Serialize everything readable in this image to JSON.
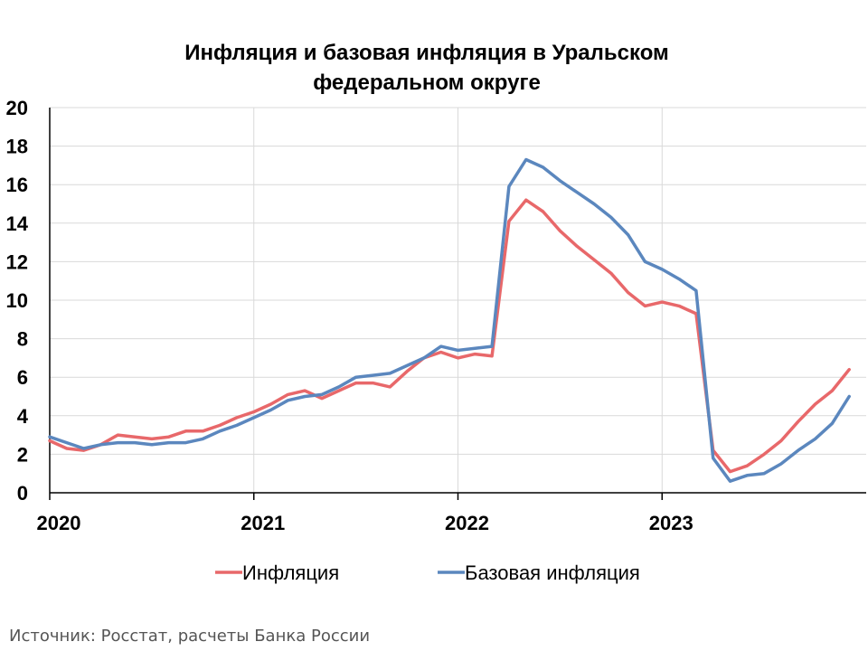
{
  "chart_data": {
    "type": "line",
    "title": "Инфляция и базовая инфляция в Уральском федеральном округе",
    "title_lines": [
      "Инфляция и базовая инфляция в Уральском",
      "федеральном округе"
    ],
    "xlabel": "",
    "ylabel": "",
    "x_tick_labels": [
      "2020",
      "2021",
      "2022",
      "2023"
    ],
    "x_start": "2020-01",
    "x_end": "2023-12",
    "y_ticks": [
      0,
      2,
      4,
      6,
      8,
      10,
      12,
      14,
      16,
      18,
      20
    ],
    "ylim": [
      0,
      20
    ],
    "grid": true,
    "legend_position": "bottom",
    "series": [
      {
        "name": "Инфляция",
        "color": "#E8686A",
        "values": [
          2.7,
          2.3,
          2.2,
          2.5,
          3.0,
          2.9,
          2.8,
          2.9,
          3.2,
          3.2,
          3.5,
          3.9,
          4.2,
          4.6,
          5.1,
          5.3,
          4.9,
          5.3,
          5.7,
          5.7,
          5.5,
          6.3,
          7.0,
          7.3,
          7.0,
          7.2,
          7.1,
          14.1,
          15.2,
          14.6,
          13.6,
          12.8,
          12.1,
          11.4,
          10.4,
          9.7,
          9.9,
          9.7,
          9.3,
          2.2,
          1.1,
          1.4,
          2.0,
          2.7,
          3.7,
          4.6,
          5.3,
          6.4
        ]
      },
      {
        "name": "Базовая инфляция",
        "color": "#5B87BE",
        "values": [
          2.9,
          2.6,
          2.3,
          2.5,
          2.6,
          2.6,
          2.5,
          2.6,
          2.6,
          2.8,
          3.2,
          3.5,
          3.9,
          4.3,
          4.8,
          5.0,
          5.1,
          5.5,
          6.0,
          6.1,
          6.2,
          6.6,
          7.0,
          7.6,
          7.4,
          7.5,
          7.6,
          15.9,
          17.3,
          16.9,
          16.2,
          15.6,
          15.0,
          14.3,
          13.4,
          12.0,
          11.6,
          11.1,
          10.5,
          1.8,
          0.6,
          0.9,
          1.0,
          1.5,
          2.2,
          2.8,
          3.6,
          5.0
        ]
      }
    ]
  },
  "footer": {
    "source": "Источник: Росстат, расчеты Банка России"
  }
}
